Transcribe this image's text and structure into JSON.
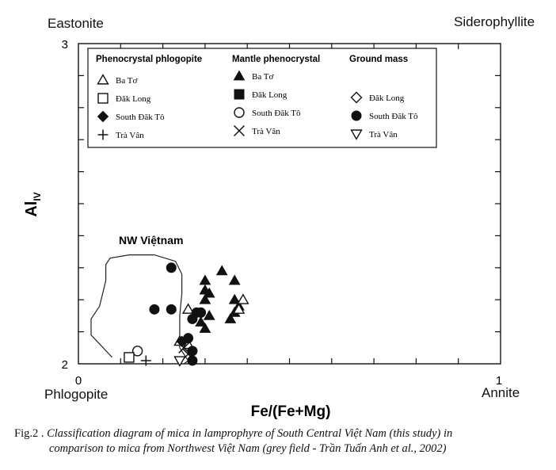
{
  "corners": {
    "top_left": "Eastonite",
    "top_right": "Siderophyllite",
    "bottom_left": "Phlogopite",
    "bottom_right": "Annite"
  },
  "caption": {
    "label": "Fig.2 .",
    "line1": "Classification diagram of mica in lamprophyre of South Central Việt Nam (this study) in",
    "line2": "comparison to mica from Northwest Việt Nam (grey field - Trần Tuấn Anh et al., 2002)"
  },
  "chart_data": {
    "type": "scatter",
    "xlabel": "Fe/(Fe+Mg)",
    "ylabel": "Al",
    "ylabel_subscript": "IV",
    "xlim": [
      0,
      1
    ],
    "ylim": [
      2,
      3
    ],
    "x_tick_labels": [
      "0",
      "1"
    ],
    "y_tick_labels": [
      "2",
      "3"
    ],
    "grid": false,
    "legend_position": "top-left",
    "legend_groups": [
      {
        "title": "Phenocrystal phlogopite",
        "entries": [
          {
            "label": "Ba Tơ",
            "marker": "triangle-open"
          },
          {
            "label": "Đăk Long",
            "marker": "square-open"
          },
          {
            "label": "South Đăk Tô",
            "marker": "diamond-filled"
          },
          {
            "label": "Trà Vân",
            "marker": "plus"
          }
        ]
      },
      {
        "title": "Mantle phenocrystal",
        "entries": [
          {
            "label": "Ba Tơ",
            "marker": "triangle-filled"
          },
          {
            "label": "Đăk Long",
            "marker": "square-filled"
          },
          {
            "label": "South Đăk Tô",
            "marker": "circle-open"
          },
          {
            "label": "Trà Vân",
            "marker": "cross"
          }
        ]
      },
      {
        "title": "Ground mass",
        "entries": [
          {
            "label": "Đăk Long",
            "marker": "diamond-open"
          },
          {
            "label": "South Đăk Tô",
            "marker": "circle-filled"
          },
          {
            "label": "Trà Vân",
            "marker": "triangle-down-open"
          }
        ]
      }
    ],
    "annotation": "NW Việtnam",
    "field_outline": [
      [
        0.08,
        2.02
      ],
      [
        0.03,
        2.09
      ],
      [
        0.03,
        2.14
      ],
      [
        0.05,
        2.18
      ],
      [
        0.065,
        2.26
      ],
      [
        0.065,
        2.31
      ],
      [
        0.075,
        2.33
      ],
      [
        0.12,
        2.34
      ],
      [
        0.18,
        2.34
      ],
      [
        0.23,
        2.32
      ],
      [
        0.245,
        2.28
      ],
      [
        0.245,
        2.22
      ],
      [
        0.24,
        2.15
      ],
      [
        0.24,
        2.05
      ],
      [
        0.26,
        2.01
      ],
      [
        0.25,
        2.0
      ]
    ],
    "series": [
      {
        "marker": "triangle-filled",
        "points": [
          [
            0.34,
            2.29
          ],
          [
            0.37,
            2.26
          ],
          [
            0.3,
            2.26
          ],
          [
            0.3,
            2.23
          ],
          [
            0.31,
            2.22
          ],
          [
            0.37,
            2.2
          ],
          [
            0.3,
            2.2
          ],
          [
            0.38,
            2.18
          ],
          [
            0.36,
            2.14
          ],
          [
            0.31,
            2.15
          ],
          [
            0.29,
            2.13
          ],
          [
            0.3,
            2.11
          ],
          [
            0.37,
            2.16
          ]
        ]
      },
      {
        "marker": "triangle-open",
        "points": [
          [
            0.39,
            2.2
          ],
          [
            0.26,
            2.17
          ],
          [
            0.38,
            2.17
          ],
          [
            0.24,
            2.07
          ],
          [
            0.26,
            2.06
          ]
        ]
      },
      {
        "marker": "circle-filled",
        "points": [
          [
            0.22,
            2.3
          ],
          [
            0.18,
            2.17
          ],
          [
            0.22,
            2.17
          ],
          [
            0.28,
            2.16
          ],
          [
            0.29,
            2.16
          ],
          [
            0.27,
            2.14
          ],
          [
            0.26,
            2.08
          ],
          [
            0.27,
            2.04
          ],
          [
            0.27,
            2.01
          ]
        ]
      },
      {
        "marker": "circle-open",
        "points": [
          [
            0.14,
            2.04
          ]
        ]
      },
      {
        "marker": "square-open",
        "points": [
          [
            0.12,
            2.02
          ]
        ]
      },
      {
        "marker": "plus",
        "points": [
          [
            0.16,
            2.01
          ]
        ]
      },
      {
        "marker": "diamond-filled",
        "points": [
          [
            0.245,
            2.07
          ]
        ]
      },
      {
        "marker": "cross",
        "points": [
          [
            0.25,
            2.05
          ],
          [
            0.26,
            2.03
          ]
        ]
      },
      {
        "marker": "triangle-down-open",
        "points": [
          [
            0.24,
            2.01
          ]
        ]
      }
    ]
  }
}
